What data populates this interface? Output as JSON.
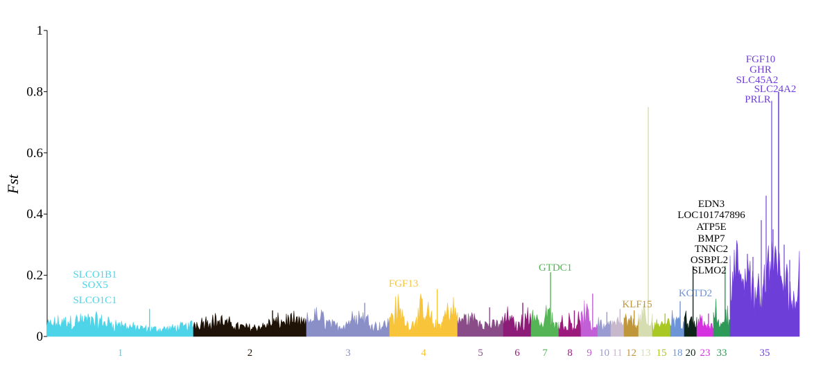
{
  "chart_data": {
    "type": "area",
    "title": "",
    "xlabel": "",
    "ylabel": "Fst",
    "ylim": [
      0,
      1
    ],
    "yticks": [
      "0",
      "0.2",
      "0.4",
      "0.6",
      "0.8",
      "1"
    ],
    "ytick_values": [
      0,
      0.2,
      0.4,
      0.6,
      0.8,
      1.0
    ],
    "grid": false,
    "legend": "none",
    "chromosomes": [
      {
        "label": "1",
        "color": "#4DD4E8",
        "baseline": 0.03,
        "peak": 0.09
      },
      {
        "label": "2",
        "color": "#1F1206",
        "baseline": 0.035,
        "peak": 0.085
      },
      {
        "label": "3",
        "color": "#8A8FC8",
        "baseline": 0.04,
        "peak": 0.11
      },
      {
        "label": "4",
        "color": "#F8C43A",
        "baseline": 0.045,
        "peak": 0.155
      },
      {
        "label": "5",
        "color": "#8A4C88",
        "baseline": 0.045,
        "peak": 0.095
      },
      {
        "label": "6",
        "color": "#8C1C78",
        "baseline": 0.04,
        "peak": 0.11
      },
      {
        "label": "7",
        "color": "#55B455",
        "baseline": 0.04,
        "peak": 0.21
      },
      {
        "label": "8",
        "color": "#9B1B7D",
        "baseline": 0.035,
        "peak": 0.085
      },
      {
        "label": "9",
        "color": "#C25FD6",
        "baseline": 0.03,
        "peak": 0.14
      },
      {
        "label": "10",
        "color": "#9A9BD0",
        "baseline": 0.035,
        "peak": 0.08
      },
      {
        "label": "11",
        "color": "#C8B8CC",
        "baseline": 0.04,
        "peak": 0.09
      },
      {
        "label": "12",
        "color": "#C0963A",
        "baseline": 0.045,
        "peak": 0.085
      },
      {
        "label": "13",
        "color": "#D6DDB0",
        "baseline": 0.04,
        "peak": 0.75
      },
      {
        "label": "15",
        "color": "#A9C824",
        "baseline": 0.04,
        "peak": 0.075
      },
      {
        "label": "18",
        "color": "#6E94D8",
        "baseline": 0.045,
        "peak": 0.115
      },
      {
        "label": "20",
        "color": "#0E2418",
        "baseline": 0.04,
        "peak": 0.23
      },
      {
        "label": "23",
        "color": "#D532E0",
        "baseline": 0.035,
        "peak": 0.075
      },
      {
        "label": "33",
        "color": "#2E9A58",
        "baseline": 0.04,
        "peak": 0.23
      },
      {
        "label": "35",
        "color": "#6E3FD8",
        "baseline": 0.1,
        "peak": 0.8
      }
    ],
    "annotations": [
      {
        "chrom": "1",
        "genes": [
          "SLCO1B1",
          "SOX5",
          "SLCO1C1"
        ],
        "color": "#4DD4E8"
      },
      {
        "chrom": "4",
        "genes": [
          "FGF13"
        ],
        "color": "#F8C43A"
      },
      {
        "chrom": "7",
        "genes": [
          "GTDC1"
        ],
        "color": "#55B455"
      },
      {
        "chrom": "12",
        "genes": [
          "KLF15"
        ],
        "color": "#C0963A"
      },
      {
        "chrom": "18",
        "genes": [
          "KCTD2"
        ],
        "color": "#6E94D8"
      },
      {
        "chrom": "20",
        "genes": [
          "EDN3",
          "LOC101747896",
          "ATP5E",
          "BMP7",
          "TNNC2",
          "OSBPL2",
          "SLMO2"
        ],
        "color": "#000000"
      },
      {
        "chrom": "35",
        "genes": [
          "FGF10",
          "GHR",
          "SLC45A2",
          "SLC24A2",
          "PRLR"
        ],
        "color": "#6E3FD8"
      }
    ]
  }
}
